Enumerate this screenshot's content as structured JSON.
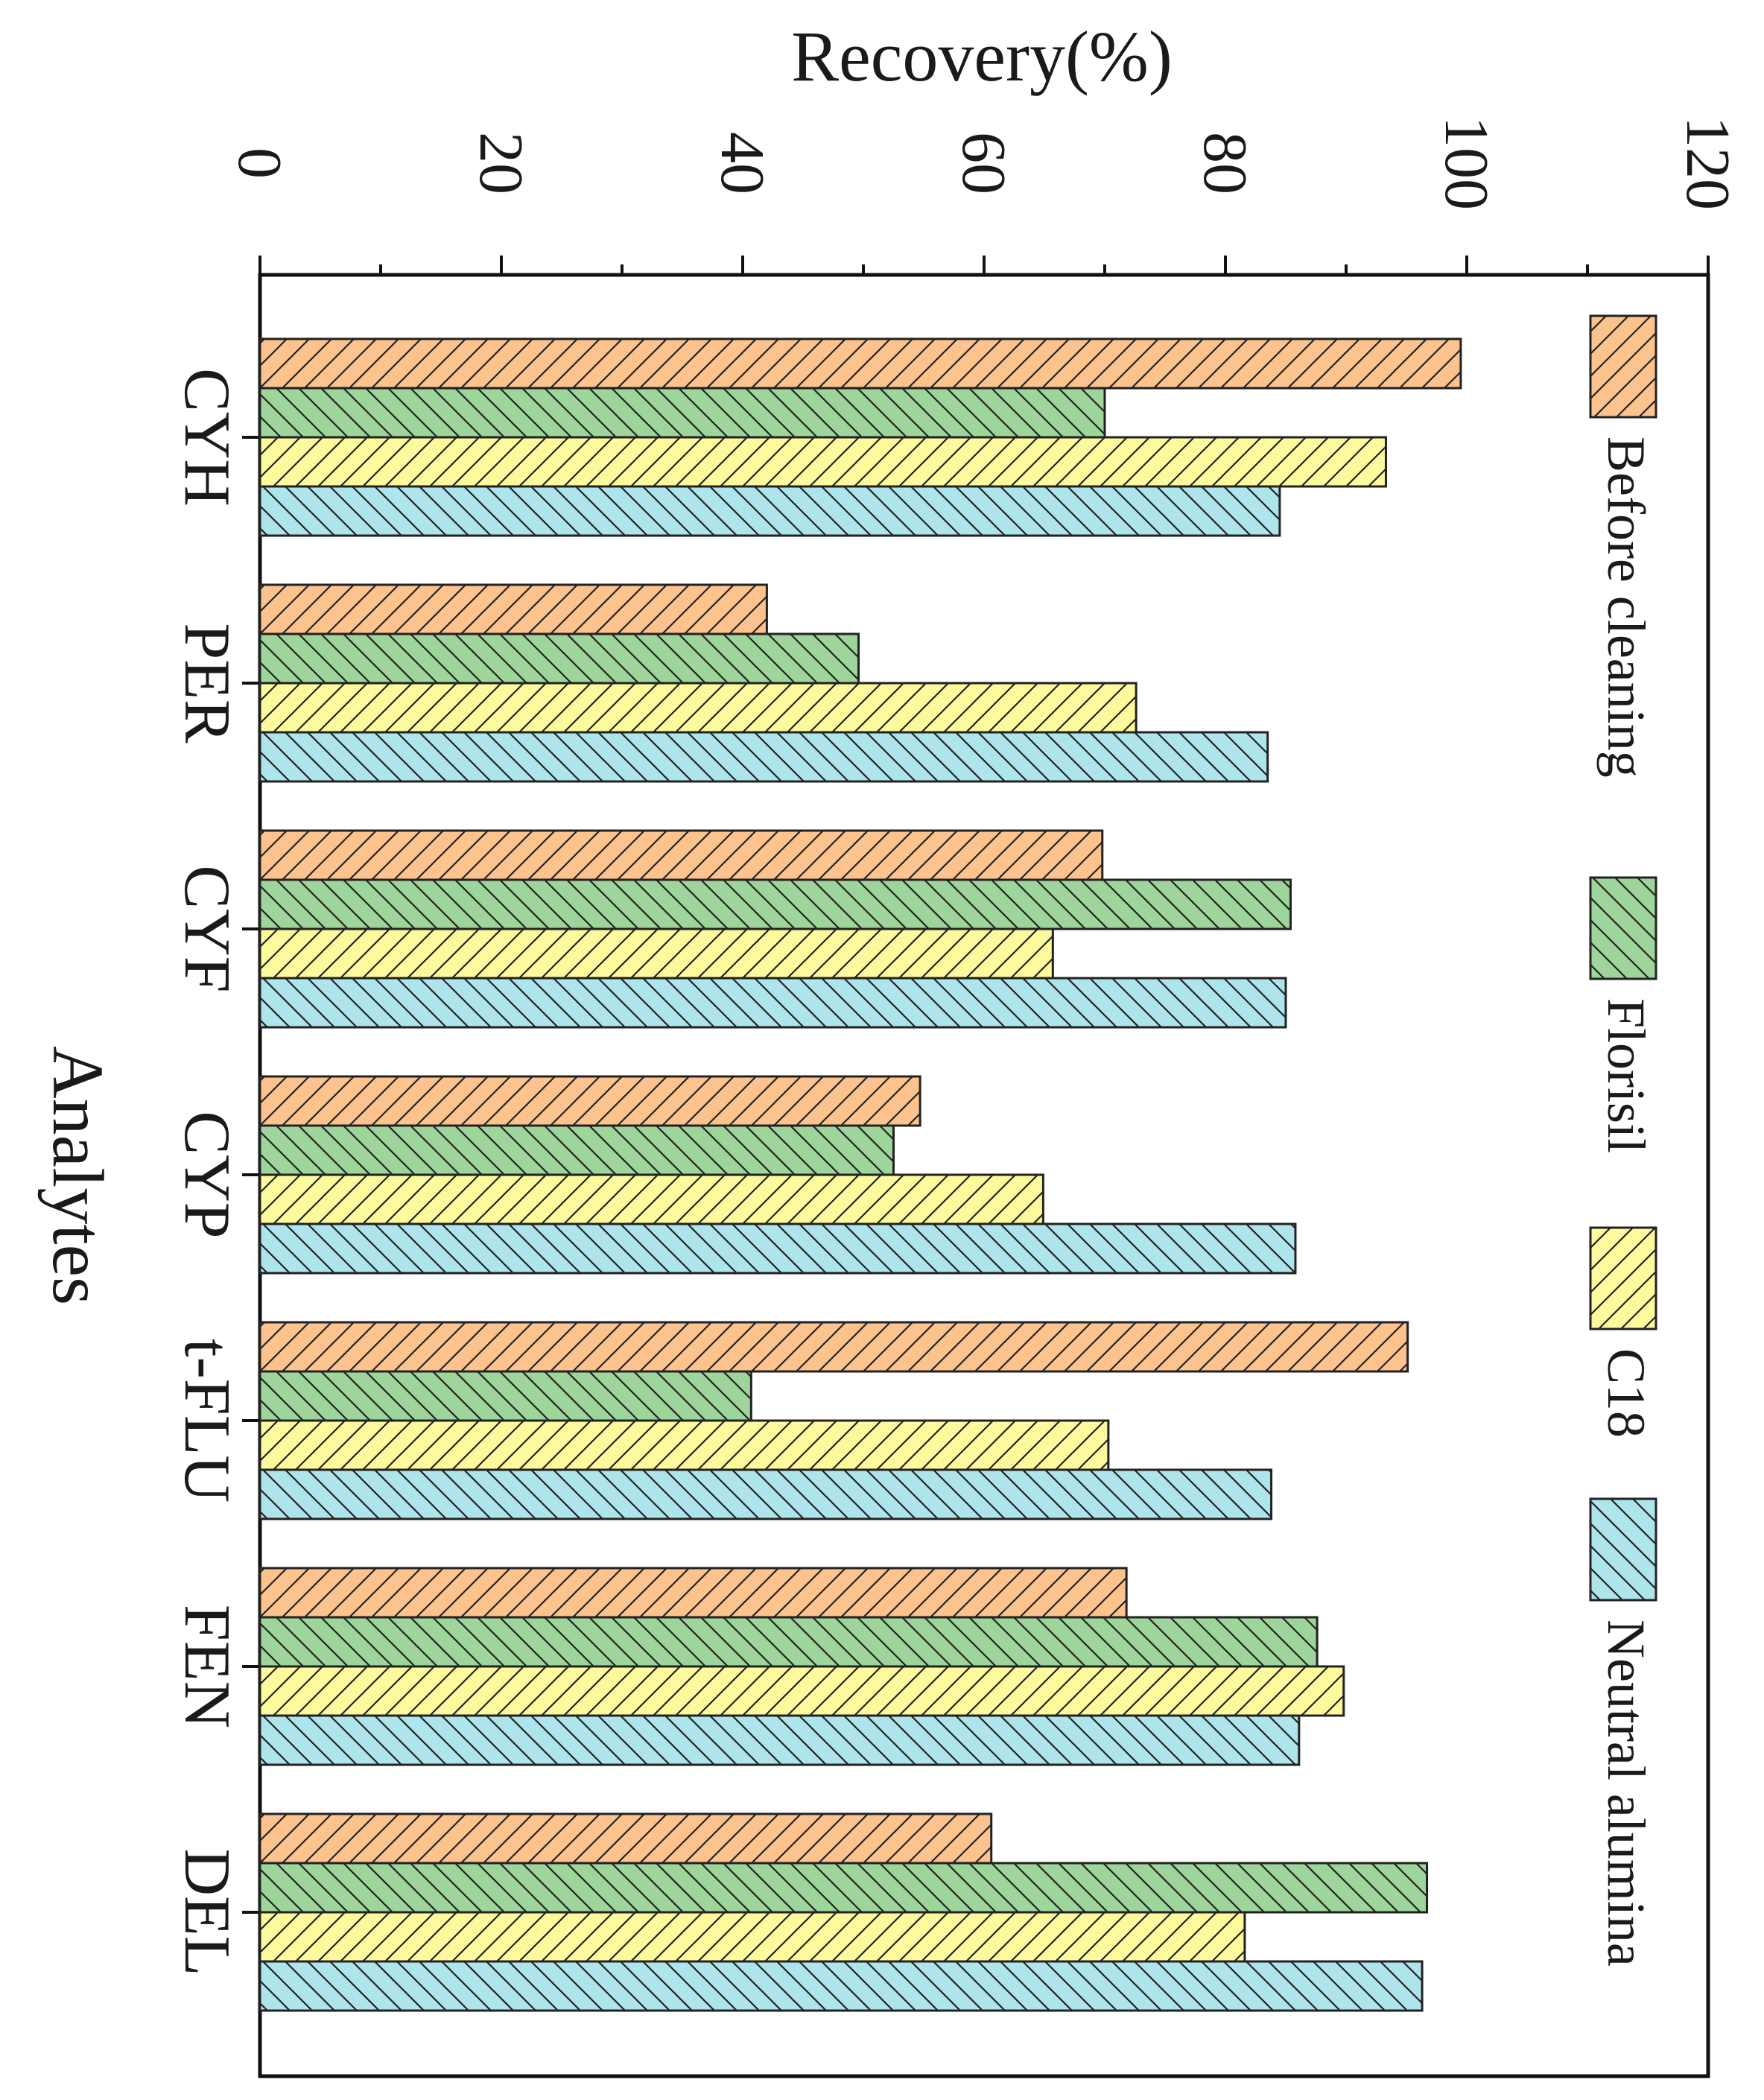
{
  "chart_data": {
    "type": "bar",
    "orientation": "horizontal (figure rotated 90 degrees clockwise)",
    "title": "",
    "xlabel": "Recovery(%)",
    "ylabel": "Analytes",
    "xlim": [
      0,
      120
    ],
    "xticks": [
      "0",
      "20",
      "40",
      "60",
      "80",
      "100",
      "120"
    ],
    "categories": [
      "CYH",
      "PER",
      "CYF",
      "CYP",
      "t-FLU",
      "FEN",
      "DEL"
    ],
    "series": [
      {
        "name": "Before cleaning",
        "color": "#FDC38E",
        "values": [
          99.5,
          42.0,
          69.8,
          54.7,
          95.1,
          71.8,
          60.6
        ]
      },
      {
        "name": "Florisil",
        "color": "#9DD59B",
        "values": [
          70.0,
          49.6,
          85.4,
          52.5,
          40.7,
          87.6,
          96.7
        ]
      },
      {
        "name": "C18",
        "color": "#FDFA9D",
        "values": [
          93.3,
          72.6,
          65.7,
          64.9,
          70.3,
          89.8,
          81.6
        ]
      },
      {
        "name": "Neutral alumina",
        "color": "#AEE5EC",
        "values": [
          84.5,
          83.5,
          85.0,
          85.8,
          83.8,
          86.1,
          96.3
        ]
      }
    ],
    "legend_position": "bottom-right"
  }
}
